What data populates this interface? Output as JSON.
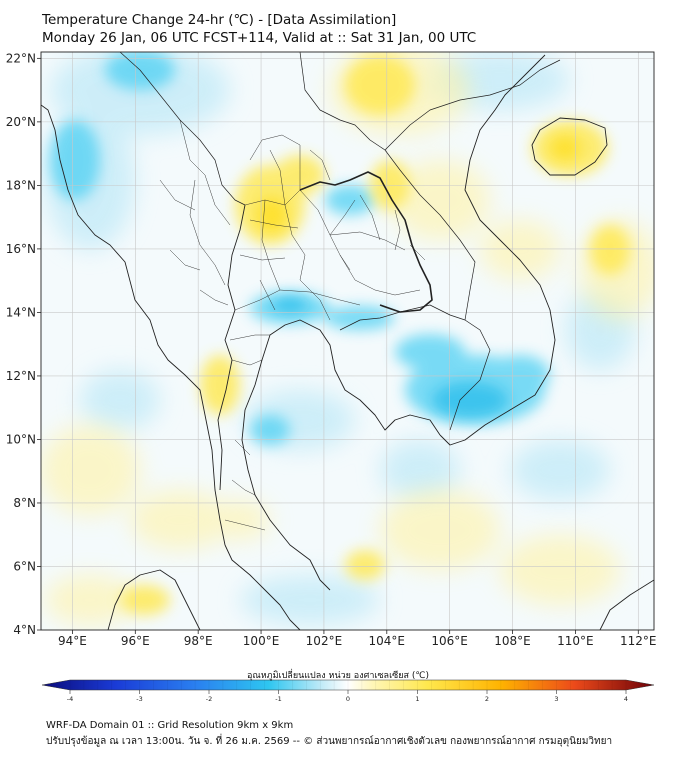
{
  "header": {
    "title": "Temperature Change 24-hr (℃) - [Data Assimilation]",
    "subtitle": "Monday 26 Jan, 06 UTC FCST+114, Valid at :: Sat 31 Jan, 00 UTC"
  },
  "map": {
    "lon_range": [
      93,
      112.5
    ],
    "lat_range": [
      4,
      22.2
    ],
    "lon_ticks": [
      "94°E",
      "96°E",
      "98°E",
      "100°E",
      "102°E",
      "104°E",
      "106°E",
      "108°E",
      "110°E",
      "112°E"
    ],
    "lat_ticks": [
      "4°N",
      "6°N",
      "8°N",
      "10°N",
      "12°N",
      "14°N",
      "16°N",
      "18°N",
      "20°N",
      "22°N"
    ],
    "grid": true,
    "background_color": "#ffffff",
    "colors": {
      "warm": "#ffe84d",
      "cool": "#2ec6f0",
      "border": "#222222",
      "grid": "#c8c8c8"
    }
  },
  "colorbar": {
    "label": "อุณหภูมิเปลี่ยนแปลง หน่วย องศาเซลเซียส (℃)",
    "ticks": [
      "-4",
      "-3",
      "-2",
      "-1",
      "0",
      "1",
      "2",
      "3",
      "4"
    ],
    "min": -4,
    "max": 4
  },
  "footer": {
    "line1": "WRF-DA Domain 01 :: Grid Resolution 9km x 9km",
    "line2": "ปรับปรุงข้อมูล ณ เวลา 13:00น. วัน จ. ที่ 26 ม.ค. 2569 -- © ส่วนพยากรณ์อากาศเชิงตัวเลข กองพยากรณ์อากาศ กรมอุตุนิยมวิทยา"
  }
}
